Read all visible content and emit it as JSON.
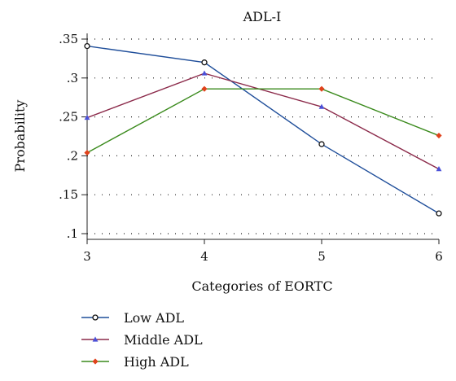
{
  "chart_data": {
    "type": "line",
    "title": "ADL-I",
    "xlabel": "Categories of EORTC",
    "ylabel": "Probability",
    "x": [
      3,
      4,
      5,
      6
    ],
    "xticks": [
      "3",
      "4",
      "5",
      "6"
    ],
    "yticks": [
      0.1,
      0.15,
      0.2,
      0.25,
      0.3,
      0.35
    ],
    "ytick_labels": [
      ".1",
      ".15",
      ".2",
      ".25",
      ".3",
      ".35"
    ],
    "xlim": [
      3,
      6
    ],
    "ylim": [
      0.1,
      0.35
    ],
    "grid": "horizontal-dotted",
    "legend_position": "bottom-left",
    "series": [
      {
        "name": "Low ADL",
        "values": [
          0.341,
          0.32,
          0.215,
          0.126
        ],
        "color": "#1f4e9a",
        "marker": "circle"
      },
      {
        "name": "Middle ADL",
        "values": [
          0.249,
          0.306,
          0.263,
          0.183
        ],
        "color": "#8b2a4a",
        "marker": "triangle"
      },
      {
        "name": "High ADL",
        "values": [
          0.204,
          0.286,
          0.286,
          0.226
        ],
        "color": "#3a8a1c",
        "marker": "diamond"
      }
    ],
    "marker_colors": {
      "circle": "#111111",
      "triangle": "#4a50d8",
      "diamond": "#e0421c"
    }
  }
}
